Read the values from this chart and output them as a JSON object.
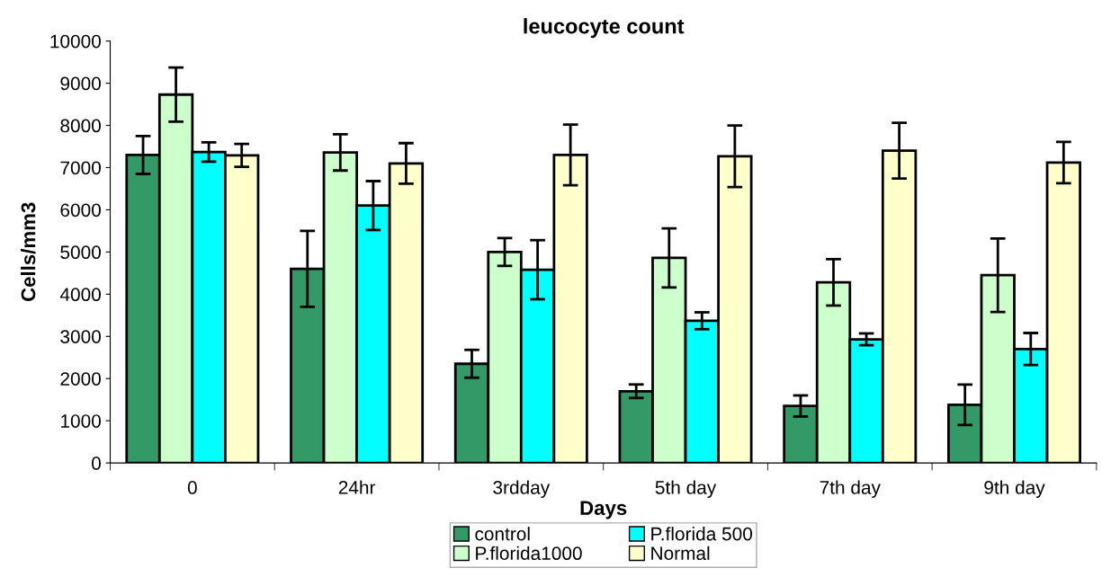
{
  "chart_data": {
    "type": "bar",
    "title": "leucocyte count",
    "xlabel": "Days",
    "ylabel": "Cells/mm3",
    "categories": [
      "0",
      "24hr",
      "3rdday",
      "5th day",
      "7th day",
      "9th day"
    ],
    "series": [
      {
        "name": "control",
        "color": "#339966",
        "values": [
          7300,
          4600,
          2350,
          1700,
          1350,
          1380
        ],
        "errors": [
          450,
          900,
          330,
          160,
          250,
          480
        ]
      },
      {
        "name": "P.florida1000",
        "color": "#ccffcc",
        "values": [
          8730,
          7360,
          5000,
          4860,
          4280,
          4450
        ],
        "errors": [
          640,
          430,
          330,
          700,
          550,
          870
        ]
      },
      {
        "name": "P.florida 500",
        "color": "#00ffff",
        "values": [
          7370,
          6100,
          4580,
          3370,
          2930,
          2700
        ],
        "errors": [
          230,
          580,
          700,
          200,
          140,
          380
        ]
      },
      {
        "name": "Normal",
        "color": "#ffffcc",
        "values": [
          7290,
          7100,
          7300,
          7270,
          7400,
          7120
        ],
        "errors": [
          270,
          480,
          720,
          730,
          660,
          490
        ]
      }
    ],
    "ylim": [
      0,
      10000
    ],
    "yticks": [
      0,
      1000,
      2000,
      3000,
      4000,
      5000,
      6000,
      7000,
      8000,
      9000,
      10000
    ],
    "grid": false,
    "legend": "bottom"
  }
}
